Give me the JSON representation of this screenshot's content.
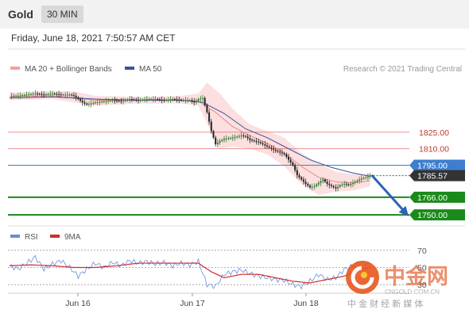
{
  "header": {
    "instrument": "Gold",
    "timeframe": "30 MIN"
  },
  "datetime": "Friday, June 18, 2021 7:50:57 AM CET",
  "legend": {
    "ma20": "MA 20 + Bollinger Bands",
    "ma50": "MA 50",
    "rsi": "RSI",
    "rsi_ma": "9MA"
  },
  "credit": "Research © 2021 Trading Central",
  "watermark": {
    "brand": "中金网",
    "url": "CNGOLD.COM.CN",
    "tagline": "中 金 财 经 新 媒 体"
  },
  "colors": {
    "up_candle": "#2e7d32",
    "down_candle": "#222222",
    "bollinger_fill": "#fcd9d9",
    "ma20": "#e88a8a",
    "ma50": "#34559a",
    "pivot": "#3d7ecf",
    "support": "#1a8a1a",
    "resistance": "#e06060",
    "last_price_bg": "#333333",
    "rsi": "#6a8cd8",
    "rsi_ma": "#d42a2a",
    "arrow": "#2e62b8"
  },
  "chart_data": [
    {
      "type": "candlestick",
      "title": "Gold 30 MIN",
      "x_labels": [
        "Jun 16",
        "Jun 17",
        "Jun 18"
      ],
      "ylim": [
        1740,
        1880
      ],
      "last_price": 1785.57,
      "price_path": [
        [
          0,
          1858
        ],
        [
          4,
          1858
        ],
        [
          8,
          1859
        ],
        [
          12,
          1860
        ],
        [
          16,
          1859
        ],
        [
          20,
          1860
        ],
        [
          24,
          1859
        ],
        [
          28,
          1859
        ],
        [
          30,
          1858
        ],
        [
          32,
          1855
        ],
        [
          34,
          1852
        ],
        [
          36,
          1850
        ],
        [
          40,
          1852
        ],
        [
          44,
          1853
        ],
        [
          48,
          1854
        ],
        [
          52,
          1853
        ],
        [
          56,
          1855
        ],
        [
          60,
          1854
        ],
        [
          64,
          1855
        ],
        [
          68,
          1855
        ],
        [
          72,
          1854
        ],
        [
          76,
          1855
        ],
        [
          80,
          1854
        ],
        [
          84,
          1854
        ],
        [
          86,
          1852
        ],
        [
          88,
          1855
        ],
        [
          90,
          1856
        ],
        [
          92,
          1843
        ],
        [
          94,
          1826
        ],
        [
          96,
          1814
        ],
        [
          98,
          1817
        ],
        [
          100,
          1819
        ],
        [
          104,
          1820
        ],
        [
          108,
          1822
        ],
        [
          110,
          1821
        ],
        [
          112,
          1818
        ],
        [
          116,
          1816
        ],
        [
          120,
          1812
        ],
        [
          124,
          1808
        ],
        [
          128,
          1805
        ],
        [
          130,
          1800
        ],
        [
          132,
          1795
        ],
        [
          134,
          1786
        ],
        [
          136,
          1782
        ],
        [
          138,
          1778
        ],
        [
          140,
          1775
        ],
        [
          142,
          1776
        ],
        [
          144,
          1779
        ],
        [
          146,
          1782
        ],
        [
          148,
          1778
        ],
        [
          150,
          1776
        ],
        [
          152,
          1774
        ],
        [
          154,
          1777
        ],
        [
          156,
          1778
        ],
        [
          158,
          1777
        ],
        [
          160,
          1779
        ],
        [
          162,
          1781
        ],
        [
          164,
          1783
        ],
        [
          166,
          1784
        ],
        [
          168,
          1785.57
        ]
      ],
      "ma20": [
        [
          0,
          1857
        ],
        [
          20,
          1858
        ],
        [
          40,
          1854
        ],
        [
          60,
          1854
        ],
        [
          80,
          1854
        ],
        [
          88,
          1853
        ],
        [
          96,
          1843
        ],
        [
          104,
          1830
        ],
        [
          112,
          1822
        ],
        [
          120,
          1815
        ],
        [
          128,
          1806
        ],
        [
          136,
          1794
        ],
        [
          144,
          1784
        ],
        [
          152,
          1780
        ],
        [
          160,
          1779
        ],
        [
          168,
          1781
        ]
      ],
      "ma50": [
        [
          0,
          1856
        ],
        [
          20,
          1857
        ],
        [
          40,
          1855
        ],
        [
          60,
          1854
        ],
        [
          80,
          1854
        ],
        [
          90,
          1852
        ],
        [
          100,
          1842
        ],
        [
          110,
          1828
        ],
        [
          120,
          1820
        ],
        [
          130,
          1810
        ],
        [
          140,
          1800
        ],
        [
          150,
          1793
        ],
        [
          160,
          1788
        ],
        [
          168,
          1785
        ]
      ],
      "bollinger": {
        "upper": [
          [
            0,
            1861
          ],
          [
            20,
            1862
          ],
          [
            30,
            1862
          ],
          [
            40,
            1858
          ],
          [
            60,
            1857
          ],
          [
            80,
            1858
          ],
          [
            88,
            1860
          ],
          [
            92,
            1870
          ],
          [
            98,
            1860
          ],
          [
            104,
            1846
          ],
          [
            112,
            1832
          ],
          [
            120,
            1826
          ],
          [
            128,
            1820
          ],
          [
            136,
            1806
          ],
          [
            144,
            1797
          ],
          [
            152,
            1789
          ],
          [
            160,
            1787
          ],
          [
            168,
            1787
          ]
        ],
        "lower": [
          [
            0,
            1854
          ],
          [
            20,
            1855
          ],
          [
            30,
            1852
          ],
          [
            40,
            1849
          ],
          [
            60,
            1851
          ],
          [
            80,
            1851
          ],
          [
            88,
            1849
          ],
          [
            92,
            1833
          ],
          [
            98,
            1810
          ],
          [
            104,
            1812
          ],
          [
            112,
            1810
          ],
          [
            120,
            1805
          ],
          [
            128,
            1794
          ],
          [
            136,
            1778
          ],
          [
            144,
            1768
          ],
          [
            152,
            1771
          ],
          [
            160,
            1772
          ],
          [
            168,
            1776
          ]
        ]
      },
      "levels": [
        {
          "value": 1825.0,
          "label": "1825.00",
          "kind": "resistance"
        },
        {
          "value": 1810.0,
          "label": "1810.00",
          "kind": "resistance"
        },
        {
          "value": 1795.0,
          "label": "1795.00",
          "kind": "pivot"
        },
        {
          "value": 1766.0,
          "label": "1766.00",
          "kind": "support"
        },
        {
          "value": 1750.0,
          "label": "1750.00",
          "kind": "support"
        }
      ],
      "forecast_arrow": {
        "from": [
          168,
          1786
        ],
        "to": [
          182,
          1752
        ]
      }
    },
    {
      "type": "line",
      "title": "RSI",
      "ylim": [
        20,
        80
      ],
      "reference_lines": [
        {
          "value": 70,
          "label": "70"
        },
        {
          "value": 50,
          "label": "50"
        },
        {
          "value": 30,
          "label": "30"
        }
      ],
      "series": [
        {
          "name": "RSI",
          "values": [
            [
              0,
              52
            ],
            [
              4,
              48
            ],
            [
              8,
              55
            ],
            [
              12,
              62
            ],
            [
              16,
              48
            ],
            [
              20,
              54
            ],
            [
              24,
              58
            ],
            [
              28,
              50
            ],
            [
              32,
              40
            ],
            [
              36,
              48
            ],
            [
              40,
              55
            ],
            [
              44,
              50
            ],
            [
              48,
              56
            ],
            [
              52,
              52
            ],
            [
              56,
              58
            ],
            [
              60,
              55
            ],
            [
              64,
              57
            ],
            [
              68,
              54
            ],
            [
              72,
              56
            ],
            [
              76,
              52
            ],
            [
              80,
              55
            ],
            [
              84,
              53
            ],
            [
              88,
              57
            ],
            [
              92,
              30
            ],
            [
              96,
              28
            ],
            [
              100,
              42
            ],
            [
              104,
              45
            ],
            [
              108,
              47
            ],
            [
              112,
              43
            ],
            [
              116,
              40
            ],
            [
              120,
              38
            ],
            [
              124,
              36
            ],
            [
              128,
              35
            ],
            [
              132,
              30
            ],
            [
              136,
              28
            ],
            [
              140,
              34
            ],
            [
              144,
              42
            ],
            [
              148,
              36
            ],
            [
              152,
              38
            ],
            [
              156,
              48
            ],
            [
              160,
              52
            ],
            [
              164,
              56
            ],
            [
              168,
              54
            ]
          ]
        },
        {
          "name": "9MA",
          "values": [
            [
              0,
              52
            ],
            [
              10,
              53
            ],
            [
              20,
              52
            ],
            [
              30,
              50
            ],
            [
              40,
              50
            ],
            [
              50,
              52
            ],
            [
              60,
              55
            ],
            [
              70,
              55
            ],
            [
              80,
              55
            ],
            [
              88,
              55
            ],
            [
              94,
              45
            ],
            [
              100,
              38
            ],
            [
              108,
              42
            ],
            [
              116,
              42
            ],
            [
              124,
              38
            ],
            [
              132,
              34
            ],
            [
              140,
              32
            ],
            [
              148,
              36
            ],
            [
              156,
              40
            ],
            [
              164,
              48
            ],
            [
              168,
              50
            ]
          ]
        }
      ]
    }
  ]
}
